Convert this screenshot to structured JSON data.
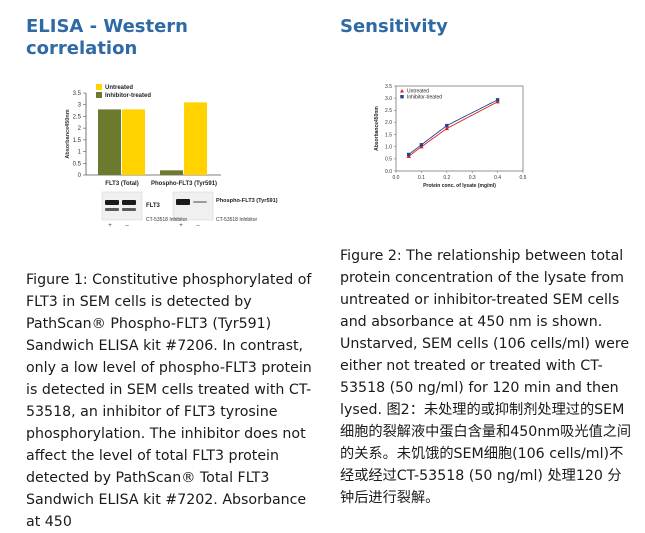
{
  "left": {
    "heading": "ELISA - Western correlation",
    "caption": "Figure 1: Constitutive phosphorylated of FLT3 in SEM cells is detected by PathScan® Phospho-FLT3 (Tyr591) Sandwich ELISA kit #7206. In contrast, only a low level of phospho-FLT3 protein is detected in SEM cells treated with CT-53518, an inhibitor of FLT3 tyrosine phosphorylation. The inhibitor does not affect the level of total FLT3 protein detected by PathScan® Total FLT3 Sandwich ELISA kit #7202. Absorbance at 450"
  },
  "right": {
    "heading": "Sensitivity",
    "caption": "Figure 2: The relationship between total protein concentration of the lysate from untreated or inhibitor-treated SEM cells and absorbance at 450 nm is shown. Unstarved, SEM cells (106 cells/ml) were either not treated or treated with CT-53518 (50 ng/ml) for 120 min and then lysed. 图2：未处理的或抑制剂处理过的SEM细胞的裂解液中蛋白含量和450nm吸光值之间的关系。未饥饿的SEM细胞(106 cells/ml)不经或经过CT-53518 (50 ng/ml) 处理120 分钟后进行裂解。"
  },
  "chart_data": [
    {
      "type": "bar",
      "title": "",
      "ylabel": "Absorbance450nm",
      "ylim": [
        0,
        3.5
      ],
      "yticks": [
        "0",
        "0.5",
        "1",
        "1.5",
        "2",
        "2.5",
        "3",
        "3.5"
      ],
      "categories": [
        "FLT3 (Total)",
        "Phospho-FLT3 (Tyr591)"
      ],
      "series": [
        {
          "name": "Untreated",
          "color": "#ffd200",
          "values": [
            2.8,
            3.1
          ]
        },
        {
          "name": "Inhibitor-treated",
          "color": "#6b7a2d",
          "values": [
            2.8,
            0.2
          ]
        }
      ],
      "legend_position": "top",
      "blot": {
        "labels": [
          "FLT3",
          "Phospho-FLT3 (Tyr591)"
        ],
        "treatment_label": "CT-53518 Inhibitor",
        "lanes": [
          "+",
          "–"
        ]
      }
    },
    {
      "type": "line",
      "title": "",
      "xlabel": "Protein conc. of lysate (mg/ml)",
      "ylabel": "Absorbance450nm",
      "xlim": [
        0,
        0.5
      ],
      "ylim": [
        0,
        3.5
      ],
      "xticks": [
        "0.0",
        "0.1",
        "0.2",
        "0.3",
        "0.4",
        "0.5"
      ],
      "yticks": [
        "0.0",
        "0.5",
        "1.0",
        "1.5",
        "2.0",
        "2.5",
        "3.0",
        "3.5"
      ],
      "series": [
        {
          "name": "Untreated",
          "color": "#d9251d",
          "marker": "triangle",
          "x": [
            0.05,
            0.1,
            0.2,
            0.4
          ],
          "y": [
            0.6,
            1.0,
            1.75,
            2.85
          ]
        },
        {
          "name": "Inhibitor-treated",
          "color": "#2b3f8f",
          "marker": "square",
          "x": [
            0.05,
            0.1,
            0.2,
            0.4
          ],
          "y": [
            0.68,
            1.08,
            1.87,
            2.93
          ]
        }
      ],
      "legend_position": "top-left"
    }
  ]
}
